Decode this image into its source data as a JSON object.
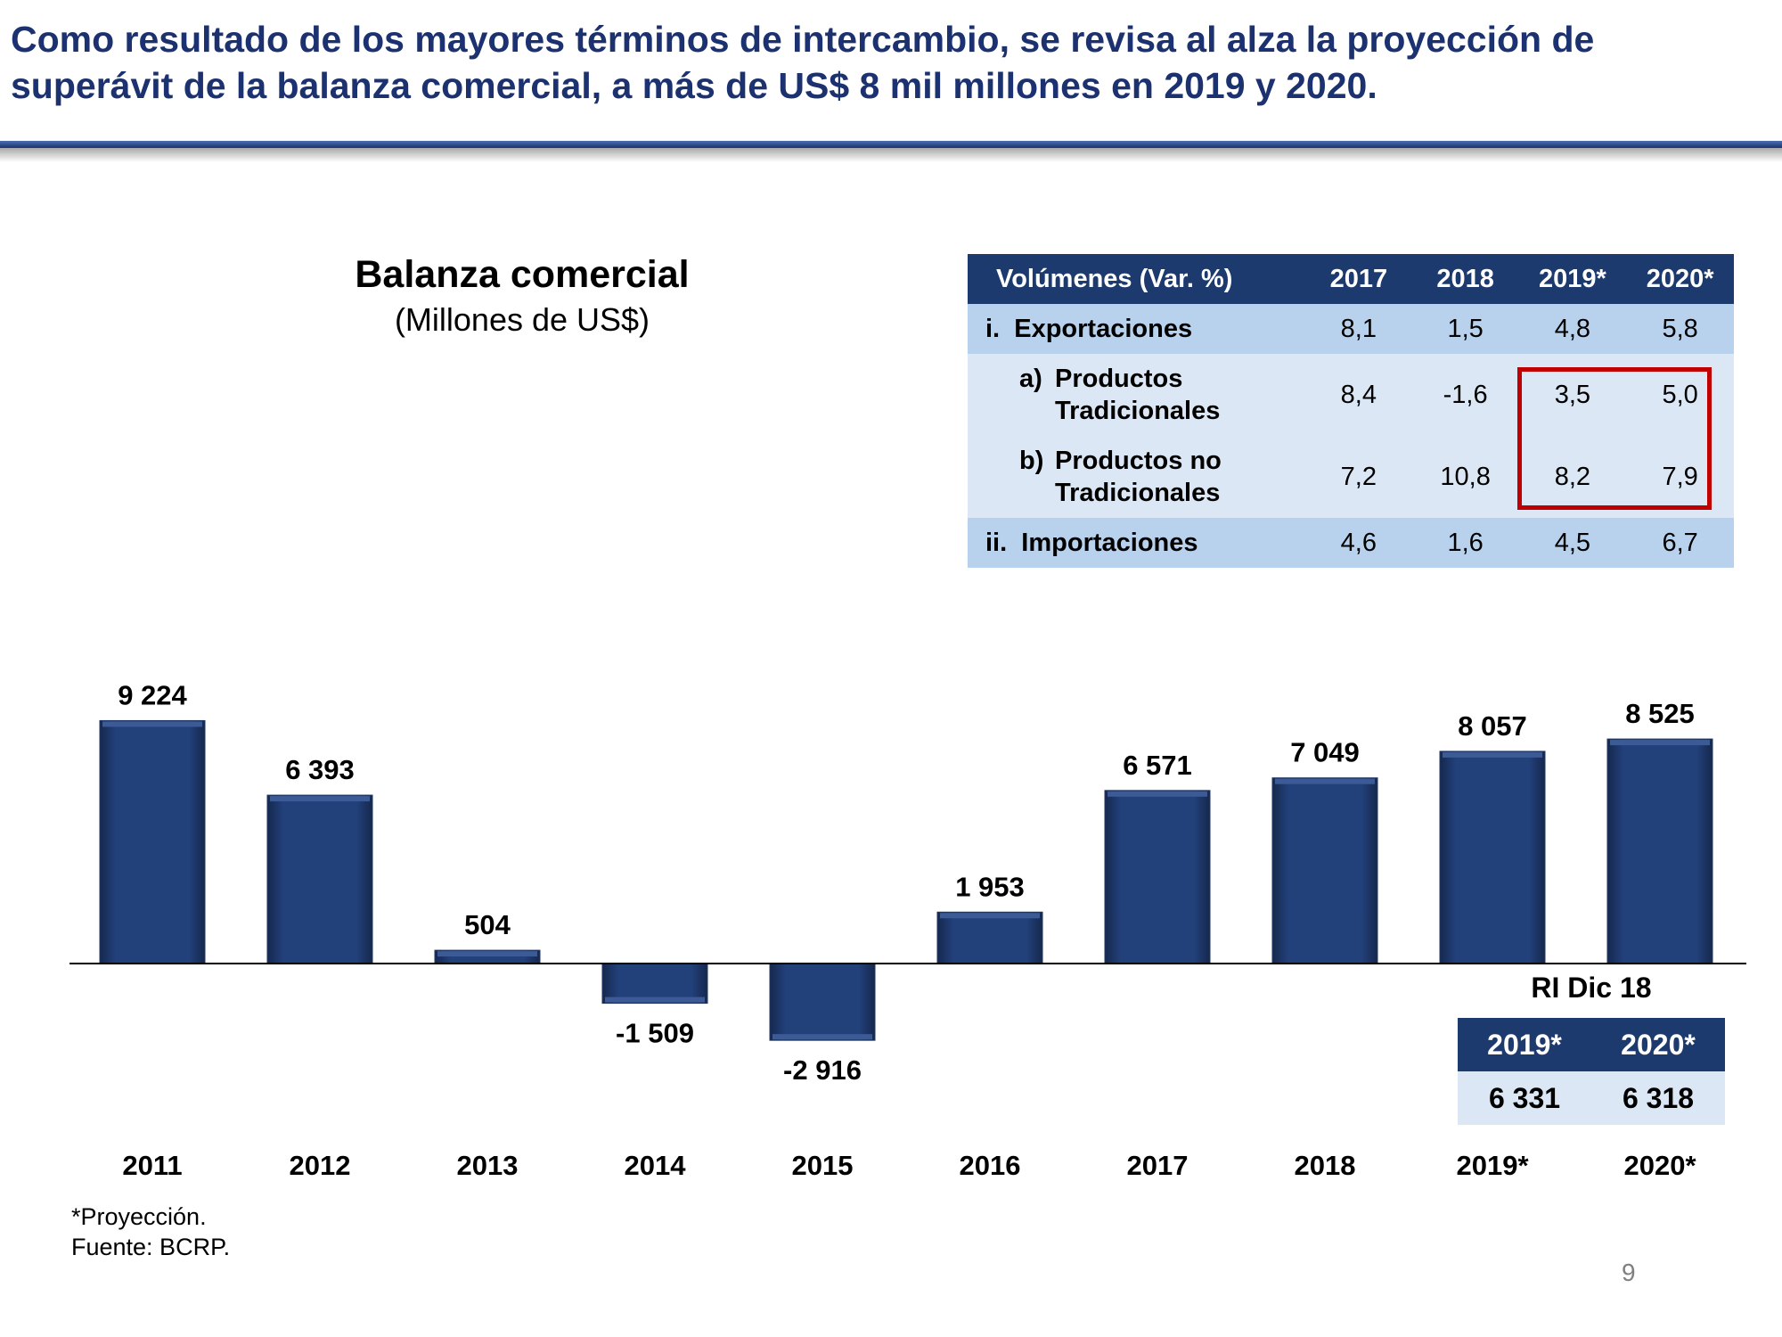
{
  "headline": {
    "line1": "Como resultado de los mayores términos de intercambio, se revisa al alza la proyección de",
    "line2": "superávit de la balanza comercial, a más de US$ 8 mil millones en 2019 y 2020."
  },
  "chart_data": {
    "type": "bar",
    "title": "Balanza comercial",
    "subtitle": "(Millones de US$)",
    "categories": [
      "2011",
      "2012",
      "2013",
      "2014",
      "2015",
      "2016",
      "2017",
      "2018",
      "2019*",
      "2020*"
    ],
    "values": [
      9224,
      6393,
      504,
      -1509,
      -2916,
      1953,
      6571,
      7049,
      8057,
      8525
    ],
    "value_labels": [
      "9 224",
      "6 393",
      "504",
      "-1 509",
      "-2 916",
      "1 953",
      "6 571",
      "7 049",
      "8 057",
      "8 525"
    ],
    "bar_color": "#1f3864",
    "grid": false,
    "legend": "none"
  },
  "volumes_table": {
    "header": [
      "Volúmenes  (Var. %)",
      "2017",
      "2018",
      "2019*",
      "2020*"
    ],
    "rows": [
      {
        "prefix": "i.",
        "label": "Exportaciones",
        "values": [
          "8,1",
          "1,5",
          "4,8",
          "5,8"
        ]
      },
      {
        "prefix": "a)",
        "label_line1": "Productos",
        "label_line2": "Tradicionales",
        "values": [
          "8,4",
          "-1,6",
          "3,5",
          "5,0"
        ]
      },
      {
        "prefix": "b)",
        "label_line1": "Productos no",
        "label_line2": "Tradicionales",
        "values": [
          "7,2",
          "10,8",
          "8,2",
          "7,9"
        ]
      },
      {
        "prefix": "ii.",
        "label": "Importaciones",
        "values": [
          "4,6",
          "1,6",
          "4,5",
          "6,7"
        ]
      }
    ],
    "highlight_color": "#c00000"
  },
  "ri_table": {
    "title": "RI Dic 18",
    "header": [
      "2019*",
      "2020*"
    ],
    "values": [
      "6 331",
      "6 318"
    ]
  },
  "footnote": {
    "line1": "*Proyección.",
    "line2": "Fuente: BCRP."
  },
  "page_number": "9"
}
